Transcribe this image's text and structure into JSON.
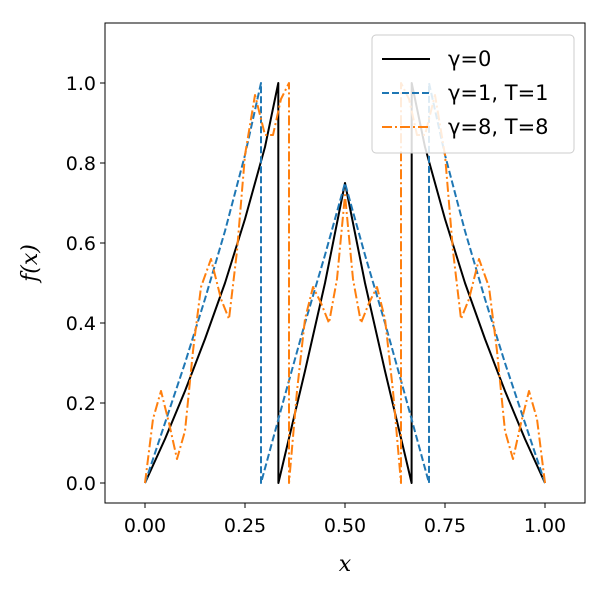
{
  "chart_data": {
    "type": "line",
    "xlabel": "x",
    "ylabel": "f(x)",
    "xlim": [
      -0.1,
      1.1
    ],
    "ylim": [
      -0.05,
      1.15
    ],
    "xticks": [
      0.0,
      0.25,
      0.5,
      0.75,
      1.0
    ],
    "xtick_labels": [
      "0.00",
      "0.25",
      "0.50",
      "0.75",
      "1.00"
    ],
    "yticks": [
      0.0,
      0.2,
      0.4,
      0.6,
      0.8,
      1.0
    ],
    "ytick_labels": [
      "0.0",
      "0.2",
      "0.4",
      "0.6",
      "0.8",
      "1.0"
    ],
    "grid": false,
    "legend_position": "top-right",
    "series": [
      {
        "name": "γ=0",
        "color": "#000000",
        "dash": "solid",
        "x": [
          0.0,
          0.05,
          0.1,
          0.15,
          0.2,
          0.25,
          0.3,
          0.3333,
          0.3334,
          0.35,
          0.4,
          0.45,
          0.5,
          0.55,
          0.6,
          0.65,
          0.6666,
          0.6667,
          0.7,
          0.75,
          0.8,
          0.85,
          0.9,
          0.95,
          1.0
        ],
        "y": [
          0.0,
          0.11,
          0.23,
          0.36,
          0.5,
          0.66,
          0.84,
          1.0,
          0.0,
          0.07,
          0.28,
          0.5,
          0.75,
          0.5,
          0.28,
          0.07,
          0.0,
          1.0,
          0.84,
          0.66,
          0.5,
          0.36,
          0.23,
          0.11,
          0.0
        ]
      },
      {
        "name": "γ=1, T=1",
        "color": "#1f77b4",
        "dash": "dashed",
        "x": [
          0.0,
          0.05,
          0.1,
          0.15,
          0.2,
          0.25,
          0.29,
          0.2901,
          0.35,
          0.4,
          0.45,
          0.5,
          0.55,
          0.6,
          0.65,
          0.7099,
          0.71,
          0.75,
          0.8,
          0.85,
          0.9,
          0.95,
          1.0
        ],
        "y": [
          0.0,
          0.15,
          0.3,
          0.46,
          0.63,
          0.82,
          1.0,
          0.0,
          0.22,
          0.4,
          0.57,
          0.75,
          0.57,
          0.4,
          0.22,
          0.0,
          1.0,
          0.82,
          0.63,
          0.46,
          0.3,
          0.15,
          0.0
        ]
      },
      {
        "name": "γ=8, T=8",
        "color": "#ff7f0e",
        "dash": "dashdot",
        "x": [
          0.0,
          0.02,
          0.04,
          0.06,
          0.08,
          0.1,
          0.12,
          0.14,
          0.165,
          0.19,
          0.21,
          0.23,
          0.25,
          0.275,
          0.3,
          0.32,
          0.34,
          0.36,
          0.3601,
          0.38,
          0.4,
          0.42,
          0.44,
          0.46,
          0.48,
          0.5,
          0.52,
          0.54,
          0.56,
          0.58,
          0.6,
          0.62,
          0.6399,
          0.64,
          0.66,
          0.68,
          0.7,
          0.725,
          0.75,
          0.77,
          0.79,
          0.81,
          0.835,
          0.86,
          0.88,
          0.9,
          0.92,
          0.94,
          0.96,
          0.98,
          1.0
        ],
        "y": [
          0.0,
          0.16,
          0.23,
          0.15,
          0.06,
          0.13,
          0.33,
          0.49,
          0.56,
          0.46,
          0.41,
          0.58,
          0.82,
          0.97,
          0.87,
          0.87,
          0.96,
          1.0,
          0.0,
          0.23,
          0.41,
          0.49,
          0.45,
          0.4,
          0.51,
          0.72,
          0.51,
          0.4,
          0.45,
          0.49,
          0.41,
          0.23,
          0.0,
          1.0,
          0.96,
          0.87,
          0.87,
          0.97,
          0.82,
          0.58,
          0.41,
          0.46,
          0.56,
          0.49,
          0.33,
          0.13,
          0.06,
          0.15,
          0.23,
          0.16,
          0.0
        ]
      }
    ]
  }
}
